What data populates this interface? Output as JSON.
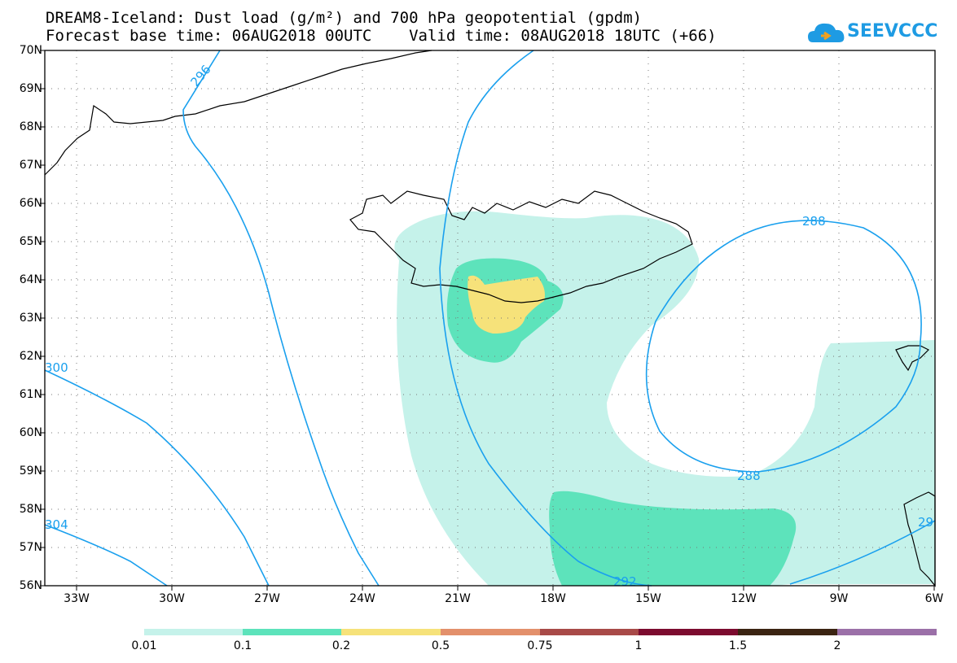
{
  "header": {
    "title_line1": "DREAM8-Iceland: Dust load (g/m²) and 700 hPa geopotential (gpdm)",
    "title_line2": "Forecast base time: 06AUG2018 00UTC    Valid time: 08AUG2018 18UTC (+66)"
  },
  "logo": {
    "text": "SEEVCCC",
    "icon": "cloud-icon",
    "color": "#1e9be3"
  },
  "map": {
    "latitude_labels": [
      "70N",
      "69N",
      "68N",
      "67N",
      "66N",
      "65N",
      "64N",
      "63N",
      "62N",
      "61N",
      "60N",
      "59N",
      "58N",
      "57N",
      "56N"
    ],
    "longitude_labels": [
      "33W",
      "30W",
      "27W",
      "24W",
      "21W",
      "18W",
      "15W",
      "12W",
      "9W",
      "6W"
    ],
    "contour_labels": [
      "296",
      "288",
      "288",
      "292",
      "300",
      "304",
      "29"
    ],
    "contour_color": "#1aa0ee",
    "coastline_color": "#000000"
  },
  "colorbar": {
    "labels": [
      "0.01",
      "0.1",
      "0.2",
      "0.5",
      "0.75",
      "1",
      "1.5",
      "2"
    ],
    "colors": [
      "#c5f2ea",
      "#5de3bb",
      "#f6e27a",
      "#e3906b",
      "#a84a48",
      "#7c0b2f",
      "#3b2412",
      "#9b70a8"
    ]
  }
}
